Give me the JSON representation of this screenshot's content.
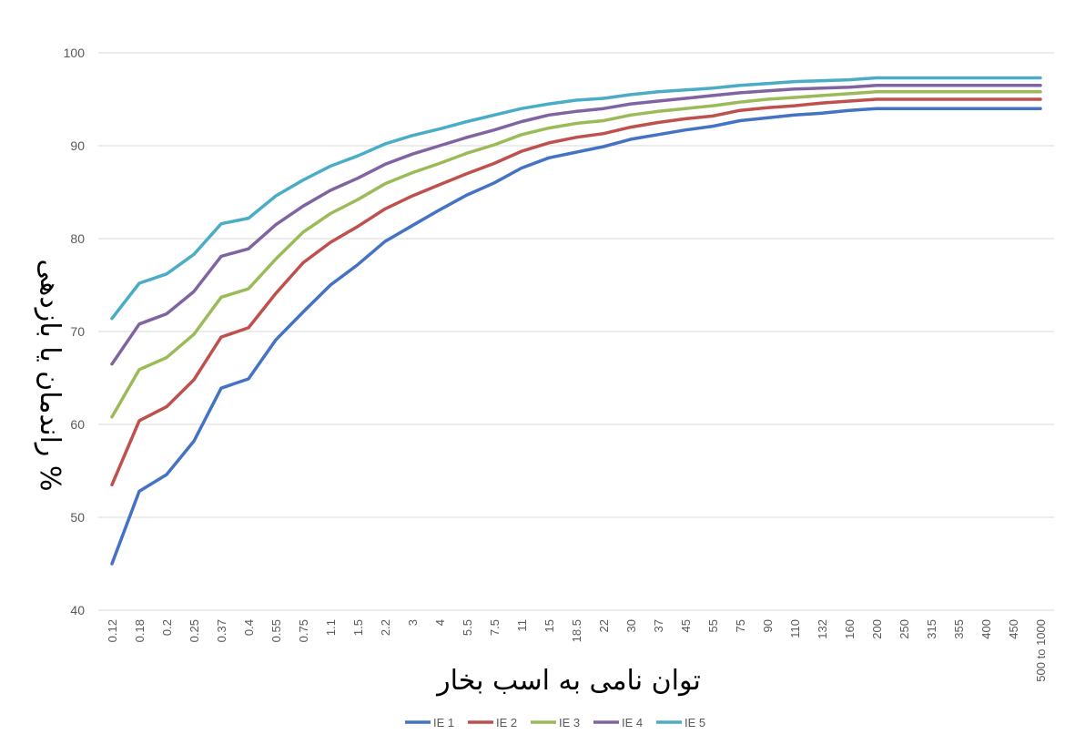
{
  "chart_data": {
    "type": "line",
    "xlabel": "توان نامی به اسب بخار",
    "ylabel": "% راندمان یا بازدهی",
    "ylim": [
      40,
      100
    ],
    "yticks": [
      40,
      50,
      60,
      70,
      80,
      90,
      100
    ],
    "grid": true,
    "legend_position": "bottom",
    "categories": [
      "0.12",
      "0.18",
      "0.2",
      "0.25",
      "0.37",
      "0.4",
      "0.55",
      "0.75",
      "1.1",
      "1.5",
      "2.2",
      "3",
      "4",
      "5.5",
      "7.5",
      "11",
      "15",
      "18.5",
      "22",
      "30",
      "37",
      "45",
      "55",
      "75",
      "90",
      "110",
      "132",
      "160",
      "200",
      "250",
      "315",
      "355",
      "400",
      "450",
      "500 to 1000"
    ],
    "series": [
      {
        "name": "IE 1",
        "color": "#4472C4",
        "values": [
          45,
          52.8,
          54.6,
          58.2,
          63.9,
          64.9,
          69.1,
          72.1,
          75,
          77.2,
          79.7,
          81.4,
          83.1,
          84.7,
          86,
          87.6,
          88.7,
          89.3,
          89.9,
          90.7,
          91.2,
          91.7,
          92.1,
          92.7,
          93,
          93.3,
          93.5,
          93.8,
          94,
          94,
          94,
          94,
          94,
          94,
          94
        ]
      },
      {
        "name": "IE 2",
        "color": "#C0504D",
        "values": [
          53.5,
          60.4,
          61.9,
          64.8,
          69.4,
          70.4,
          74.1,
          77.4,
          79.6,
          81.3,
          83.2,
          84.6,
          85.8,
          87,
          88.1,
          89.4,
          90.3,
          90.9,
          91.3,
          92,
          92.5,
          92.9,
          93.2,
          93.8,
          94.1,
          94.3,
          94.6,
          94.8,
          95,
          95,
          95,
          95,
          95,
          95,
          95
        ]
      },
      {
        "name": "IE 3",
        "color": "#9BBB59",
        "values": [
          60.8,
          65.9,
          67.2,
          69.7,
          73.7,
          74.6,
          77.8,
          80.7,
          82.7,
          84.2,
          85.9,
          87.1,
          88.1,
          89.2,
          90.1,
          91.2,
          91.9,
          92.4,
          92.7,
          93.3,
          93.7,
          94,
          94.3,
          94.7,
          95,
          95.2,
          95.4,
          95.6,
          95.8,
          95.8,
          95.8,
          95.8,
          95.8,
          95.8,
          95.8
        ]
      },
      {
        "name": "IE 4",
        "color": "#8064A2",
        "values": [
          66.5,
          70.8,
          71.9,
          74.3,
          78.1,
          78.9,
          81.5,
          83.5,
          85.2,
          86.5,
          88,
          89.1,
          90,
          90.9,
          91.7,
          92.6,
          93.3,
          93.7,
          94,
          94.5,
          94.8,
          95.1,
          95.4,
          95.7,
          95.9,
          96.1,
          96.2,
          96.3,
          96.5,
          96.5,
          96.5,
          96.5,
          96.5,
          96.5,
          96.5
        ]
      },
      {
        "name": "IE 5",
        "color": "#4BACC6",
        "values": [
          71.4,
          75.2,
          76.2,
          78.3,
          81.6,
          82.2,
          84.6,
          86.3,
          87.8,
          88.9,
          90.2,
          91.1,
          91.8,
          92.6,
          93.3,
          94,
          94.5,
          94.9,
          95.1,
          95.5,
          95.8,
          96,
          96.2,
          96.5,
          96.7,
          96.9,
          97,
          97.1,
          97.3,
          97.3,
          97.3,
          97.3,
          97.3,
          97.3,
          97.3
        ]
      }
    ]
  }
}
